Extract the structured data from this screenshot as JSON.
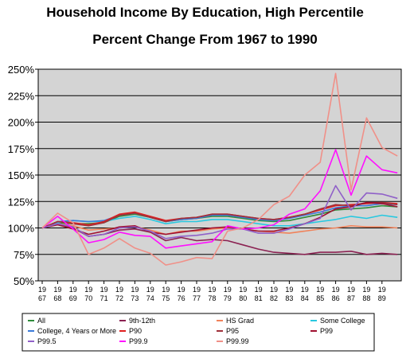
{
  "chart_data": {
    "type": "line",
    "title": "Household Income By Education, High Percentile",
    "subtitle": "Percent Change From 1967 to 1990",
    "xlabel": "",
    "ylabel": "",
    "x": [
      1967,
      1968,
      1969,
      1970,
      1971,
      1972,
      1973,
      1974,
      1975,
      1976,
      1977,
      1978,
      1979,
      1980,
      1981,
      1982,
      1983,
      1984,
      1985,
      1986,
      1987,
      1988,
      1989,
      1990
    ],
    "x_tick_labels": [
      [
        "19",
        "67"
      ],
      [
        "19",
        "68"
      ],
      [
        "19",
        "69"
      ],
      [
        "19",
        "70"
      ],
      [
        "19",
        "71"
      ],
      [
        "19",
        "72"
      ],
      [
        "19",
        "73"
      ],
      [
        "19",
        "74"
      ],
      [
        "19",
        "75"
      ],
      [
        "19",
        "76"
      ],
      [
        "19",
        "77"
      ],
      [
        "19",
        "78"
      ],
      [
        "19",
        "79"
      ],
      [
        "19",
        "80"
      ],
      [
        "19",
        "81"
      ],
      [
        "19",
        "82"
      ],
      [
        "19",
        "83"
      ],
      [
        "19",
        "84"
      ],
      [
        "19",
        "85"
      ],
      [
        "19",
        "86"
      ],
      [
        "19",
        "87"
      ],
      [
        "19",
        "88"
      ],
      [
        "19",
        "89"
      ]
    ],
    "y_ticks": [
      50,
      75,
      100,
      125,
      150,
      175,
      200,
      225,
      250
    ],
    "y_tick_labels": [
      "50%",
      "75%",
      "100%",
      "125%",
      "150%",
      "175%",
      "200%",
      "225%",
      "250%"
    ],
    "ylim": [
      50,
      250
    ],
    "grid": true,
    "legend_position": "bottom",
    "plot_background": "#d4d4d4",
    "series": [
      {
        "name": "All",
        "color": "#2e8b3a",
        "values": [
          100,
          105,
          104,
          104,
          105,
          111,
          113,
          110,
          106,
          108,
          109,
          111,
          111,
          109,
          107,
          106,
          107,
          110,
          113,
          117,
          118,
          119,
          121,
          120
        ]
      },
      {
        "name": "9th-12th",
        "color": "#8b2252",
        "values": [
          100,
          103,
          100,
          92,
          94,
          98,
          99,
          96,
          88,
          91,
          88,
          89,
          88,
          84,
          80,
          77,
          76,
          75,
          77,
          77,
          78,
          75,
          76,
          75
        ]
      },
      {
        "name": "HS Grad",
        "color": "#f0825a",
        "values": [
          100,
          104,
          102,
          98,
          99,
          100,
          101,
          98,
          94,
          97,
          97,
          99,
          100,
          99,
          97,
          96,
          95,
          97,
          99,
          100,
          102,
          101,
          101,
          100
        ]
      },
      {
        "name": "Some College",
        "color": "#28c8e0",
        "values": [
          100,
          105,
          107,
          106,
          106,
          109,
          111,
          108,
          104,
          106,
          106,
          108,
          108,
          106,
          104,
          102,
          102,
          104,
          106,
          108,
          111,
          109,
          112,
          110
        ]
      },
      {
        "name": "College, 4 Years or More",
        "color": "#3a7ad8",
        "values": [
          100,
          106,
          107,
          106,
          107,
          112,
          114,
          110,
          106,
          108,
          109,
          112,
          112,
          110,
          108,
          107,
          109,
          112,
          115,
          119,
          121,
          121,
          123,
          122
        ]
      },
      {
        "name": "P90",
        "color": "#e02020",
        "values": [
          100,
          106,
          105,
          103,
          106,
          113,
          115,
          111,
          107,
          109,
          110,
          113,
          113,
          111,
          109,
          108,
          110,
          113,
          117,
          121,
          122,
          123,
          124,
          123
        ]
      },
      {
        "name": "P95",
        "color": "#a0303a",
        "values": [
          100,
          106,
          104,
          102,
          105,
          112,
          114,
          110,
          106,
          109,
          110,
          113,
          113,
          111,
          109,
          108,
          110,
          113,
          118,
          122,
          121,
          124,
          124,
          122
        ]
      },
      {
        "name": "P99",
        "color": "#a01030",
        "values": [
          100,
          103,
          99,
          94,
          97,
          101,
          102,
          96,
          94,
          96,
          98,
          100,
          101,
          99,
          97,
          97,
          100,
          104,
          110,
          118,
          120,
          124,
          123,
          120
        ]
      },
      {
        "name": "P99.5",
        "color": "#9060c8",
        "values": [
          100,
          104,
          101,
          92,
          94,
          100,
          101,
          97,
          90,
          92,
          93,
          95,
          99,
          99,
          95,
          95,
          99,
          104,
          109,
          140,
          117,
          133,
          132,
          128
        ]
      },
      {
        "name": "P99.9",
        "color": "#ff10ff",
        "values": [
          100,
          111,
          99,
          86,
          89,
          96,
          93,
          92,
          81,
          83,
          85,
          87,
          102,
          99,
          100,
          103,
          113,
          118,
          135,
          174,
          131,
          168,
          155,
          152
        ]
      },
      {
        "name": "P99.99",
        "color": "#f09088",
        "values": [
          100,
          114,
          105,
          75,
          81,
          90,
          81,
          76,
          65,
          68,
          72,
          71,
          97,
          100,
          108,
          122,
          130,
          150,
          162,
          246,
          136,
          204,
          176,
          168
        ]
      }
    ]
  }
}
